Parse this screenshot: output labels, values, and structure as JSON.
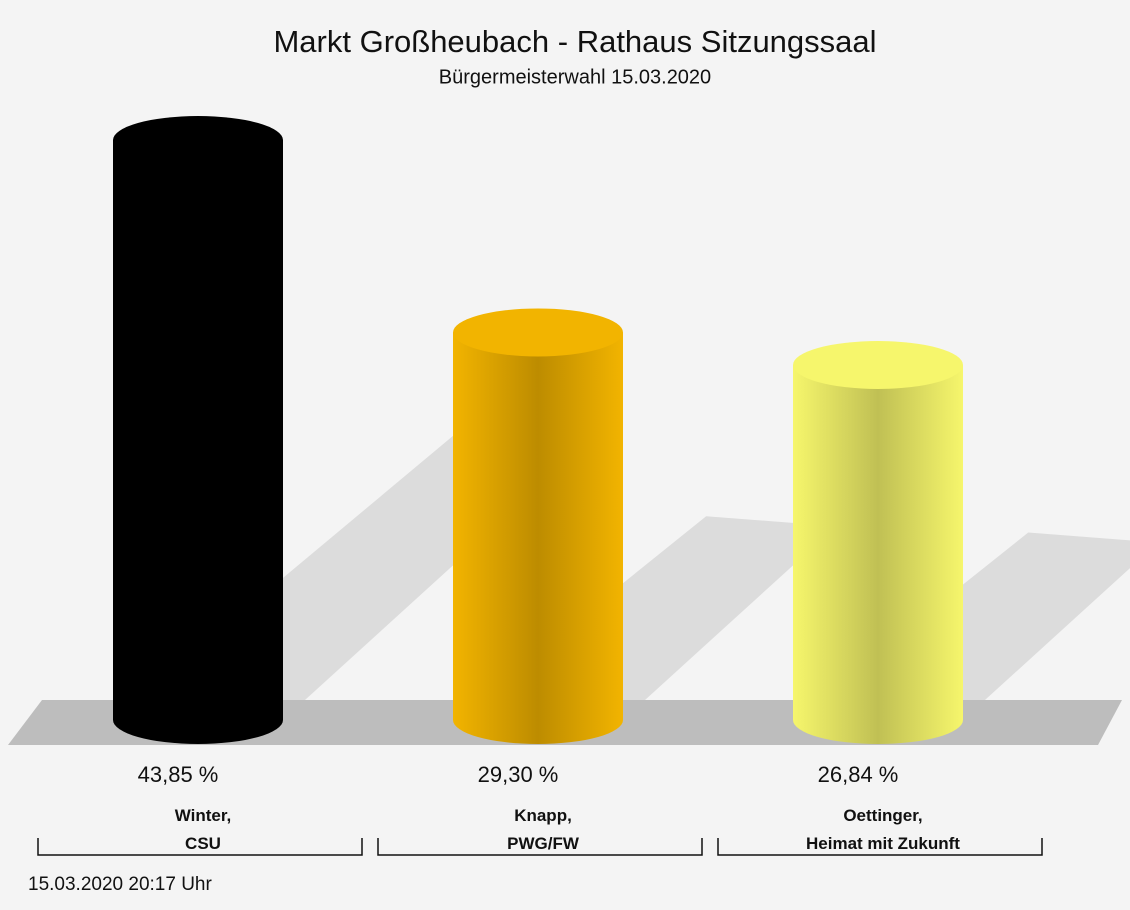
{
  "chart_data": {
    "type": "bar",
    "title": "Markt Großheubach - Rathaus Sitzungssaal",
    "subtitle": "Bürgermeisterwahl 15.03.2020",
    "categories": [
      "Winter,\nCSU",
      "Knapp,\nPWG/FW",
      "Oettinger,\nHeimat mit Zukunft"
    ],
    "values": [
      43.85,
      29.3,
      26.84
    ],
    "value_labels": [
      "43,85 %",
      "29,30 %",
      "26,84 %"
    ],
    "colors": [
      "#000000",
      "#f2b400",
      "#f6f66c"
    ],
    "footnote": "15.03.2020 20:17 Uhr"
  }
}
